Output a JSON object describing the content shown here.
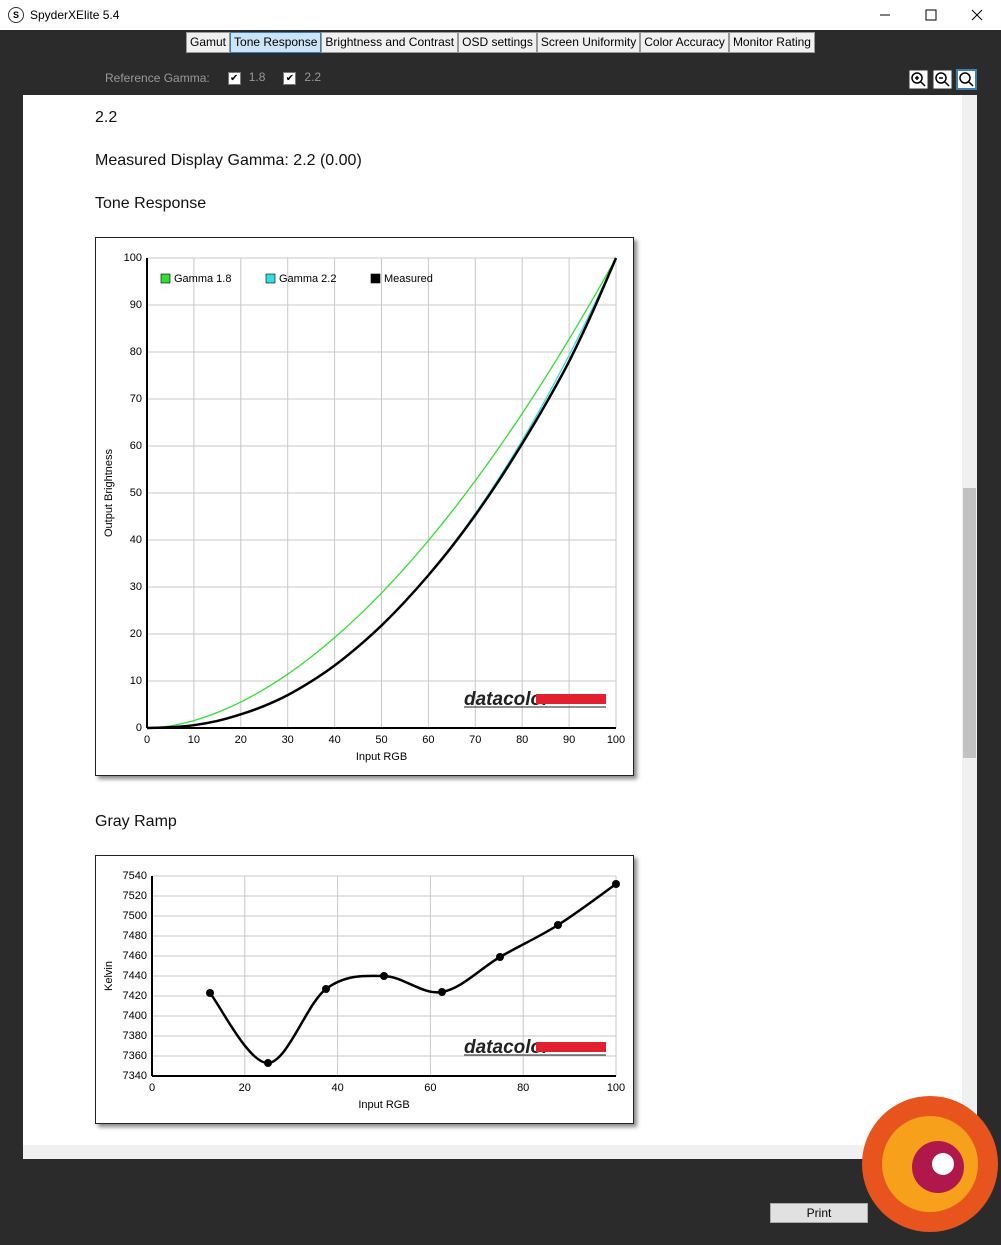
{
  "window": {
    "title": "SpyderXElite 5.4",
    "icon": "S"
  },
  "tabs": {
    "items": [
      "Gamut",
      "Tone Response",
      "Brightness and Contrast",
      "OSD settings",
      "Screen Uniformity",
      "Color Accuracy",
      "Monitor Rating"
    ],
    "active": 1
  },
  "toolbar": {
    "label": "Reference Gamma:",
    "options": [
      {
        "label": "1.8",
        "checked": true
      },
      {
        "label": "2.2",
        "checked": true
      }
    ]
  },
  "report": {
    "heading": "2.2",
    "measured": "Measured Display Gamma: 2.2 (0.00)",
    "section1": "Tone Response",
    "section2": "Gray Ramp"
  },
  "footer": {
    "print": "Print"
  },
  "chart_data": [
    {
      "type": "line",
      "x": [
        0,
        5,
        10,
        15,
        20,
        25,
        30,
        35,
        40,
        45,
        50,
        55,
        60,
        65,
        70,
        75,
        80,
        85,
        90,
        95,
        100
      ],
      "series": [
        {
          "name": "Gamma 1.8",
          "color": "#33dd33",
          "values": [
            0,
            0.46,
            1.58,
            3.29,
            5.52,
            8.25,
            11.45,
            15.11,
            19.22,
            23.76,
            28.72,
            34.09,
            39.87,
            46.05,
            52.63,
            59.58,
            66.92,
            74.64,
            82.72,
            91.18,
            100
          ]
        },
        {
          "name": "Gamma 2.2",
          "color": "#33dddd",
          "values": [
            0,
            0.14,
            0.63,
            1.54,
            2.9,
            4.74,
            7.07,
            9.93,
            13.32,
            17.26,
            21.76,
            26.84,
            32.5,
            38.76,
            45.63,
            53.11,
            61.21,
            69.94,
            79.31,
            89.33,
            100
          ]
        },
        {
          "name": "Measured",
          "color": "#000000",
          "values": [
            0,
            0.15,
            0.6,
            1.5,
            2.9,
            4.7,
            7.0,
            9.9,
            13.3,
            17.3,
            21.8,
            26.9,
            32.5,
            38.6,
            45.3,
            52.6,
            60.5,
            68.9,
            78.0,
            88.5,
            100
          ]
        }
      ],
      "xlim": [
        0,
        100
      ],
      "ylim": [
        0,
        100
      ],
      "xticks": [
        0,
        10,
        20,
        30,
        40,
        50,
        60,
        70,
        80,
        90,
        100
      ],
      "yticks": [
        0,
        10,
        20,
        30,
        40,
        50,
        60,
        70,
        80,
        90,
        100
      ],
      "xlabel": "Input RGB",
      "ylabel": "Output Brightness",
      "grid": true,
      "legend": "top-left",
      "watermark": "datacolor"
    },
    {
      "type": "line",
      "x": [
        12.5,
        25,
        37.5,
        50,
        62.5,
        75,
        87.5,
        100
      ],
      "series": [
        {
          "color": "#000000",
          "values": [
            7423,
            7353,
            7427,
            7440,
            7424,
            7459,
            7491,
            7532
          ]
        }
      ],
      "markers": true,
      "xlim": [
        0,
        100
      ],
      "ylim": [
        7340,
        7540
      ],
      "xticks": [
        0,
        20,
        40,
        60,
        80,
        100
      ],
      "yticks": [
        7340,
        7360,
        7380,
        7400,
        7420,
        7440,
        7460,
        7480,
        7500,
        7520,
        7540
      ],
      "xlabel": "Input RGB",
      "ylabel": "Kelvin",
      "grid": true,
      "watermark": "datacolor"
    }
  ]
}
